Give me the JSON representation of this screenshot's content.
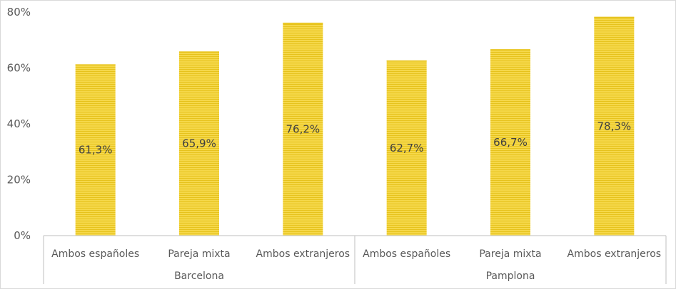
{
  "chart_data": {
    "type": "bar",
    "title": "",
    "xlabel": "",
    "ylabel": "",
    "ylim": [
      0,
      80
    ],
    "y_ticks": [
      0,
      20,
      40,
      60,
      80
    ],
    "y_tick_labels": [
      "0%",
      "20%",
      "40%",
      "60%",
      "80%"
    ],
    "groups": [
      {
        "label": "Barcelona",
        "categories": [
          "Ambos españoles",
          "Pareja mixta",
          "Ambos extranjeros"
        ],
        "values": [
          61.3,
          65.9,
          76.2
        ],
        "labels": [
          "61,3%",
          "65,9%",
          "76,2%"
        ]
      },
      {
        "label": "Pamplona",
        "categories": [
          "Ambos españoles",
          "Pareja mixta",
          "Ambos extranjeros"
        ],
        "values": [
          62.7,
          66.7,
          78.3
        ],
        "labels": [
          "62,7%",
          "66,7%",
          "78,3%"
        ]
      }
    ],
    "grid": false,
    "bar_color": "#f5d84a",
    "bar_stripe_color": "#e6c21c",
    "axis_color": "#bfbfbf",
    "text_color": "#595959",
    "label_color": "#404040"
  }
}
